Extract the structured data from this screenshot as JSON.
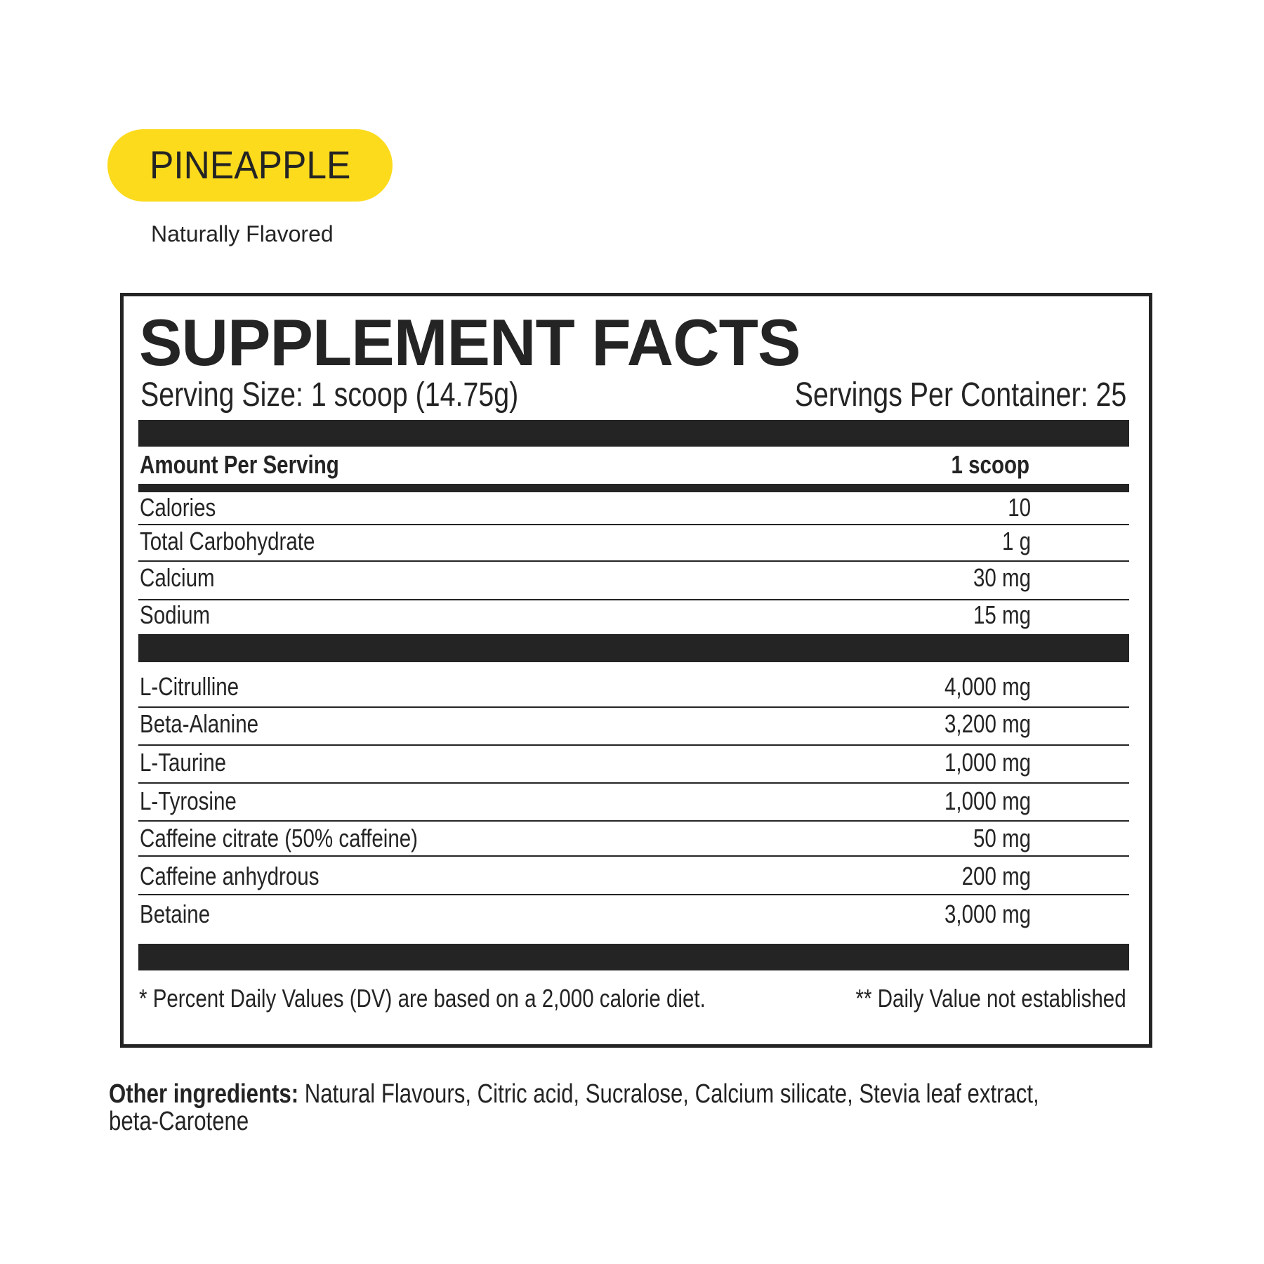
{
  "flavor": {
    "name": "PINEAPPLE",
    "subtitle": "Naturally Flavored",
    "color": "#fcdb1d"
  },
  "panel": {
    "title": "SUPPLEMENT FACTS",
    "serving_size": "Serving Size: 1 scoop (14.75g)",
    "servings_per_container": "Servings Per Container: 25",
    "header": {
      "label": "Amount Per Serving",
      "value": "1 scoop"
    },
    "nutrients": [
      {
        "name": "Calories",
        "amount": "10"
      },
      {
        "name": "Total Carbohydrate",
        "amount": "1 g"
      },
      {
        "name": "Calcium",
        "amount": "30 mg"
      },
      {
        "name": "Sodium",
        "amount": "15 mg"
      }
    ],
    "ingredients": [
      {
        "name": "L-Citrulline",
        "amount": "4,000 mg"
      },
      {
        "name": "Beta-Alanine",
        "amount": "3,200 mg"
      },
      {
        "name": "L-Taurine",
        "amount": "1,000 mg"
      },
      {
        "name": "L-Tyrosine",
        "amount": "1,000 mg"
      },
      {
        "name": "Caffeine citrate (50% caffeine)",
        "amount": "50 mg"
      },
      {
        "name": "Caffeine anhydrous",
        "amount": "200 mg"
      },
      {
        "name": "Betaine",
        "amount": "3,000 mg"
      }
    ],
    "footnote_left": "* Percent Daily Values (DV) are based on a 2,000 calorie diet.",
    "footnote_right": "** Daily Value not established"
  },
  "other_ingredients": {
    "label": "Other ingredients:",
    "text": " Natural Flavours, Citric acid, Sucralose, Calcium silicate, Stevia leaf extract,",
    "text2": "beta-Carotene"
  }
}
